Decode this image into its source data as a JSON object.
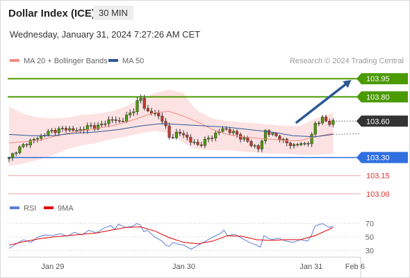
{
  "header": {
    "title": "Dollar Index (ICE)",
    "timeframe": "30 MIN",
    "datetime": "Wednesday, January 31, 2024 7:27:26 AM CET"
  },
  "chart_data": {
    "type": "candlestick",
    "legend": [
      {
        "name": "MA 20 + Bollinger Bands",
        "color": "#f28b82"
      },
      {
        "name": "MA 50",
        "color": "#2b5797"
      }
    ],
    "credit": "Research © 2024 Trading Central",
    "price_axis": {
      "min": 102.965,
      "max": 104.02
    },
    "levels": [
      {
        "value": 103.95,
        "label": "103.95",
        "color": "#4a9a00",
        "kind": "resistance"
      },
      {
        "value": 103.8,
        "label": "103.80",
        "color": "#4a9a00",
        "kind": "resistance"
      },
      {
        "value": 103.6,
        "label": "103.60",
        "color": "#333333",
        "kind": "pivot"
      },
      {
        "value": 103.3,
        "label": "103.30",
        "color": "#2f6fe0",
        "kind": "support"
      },
      {
        "value": 103.15,
        "label": "103.15",
        "color": "#f2a0a0",
        "kind": "support"
      },
      {
        "value": 103.0,
        "label": "103.00",
        "color": "#f2a0a0",
        "kind": "support"
      }
    ],
    "forecast_arrow": {
      "from_x": 79,
      "from_price": 103.59,
      "to_x": 94,
      "to_price": 103.94,
      "color": "#2b5797"
    },
    "x_axis": {
      "min": 0,
      "max": 100,
      "labels": [
        {
          "x": 12,
          "text": "Jan 29"
        },
        {
          "x": 48,
          "text": "Jan 30"
        },
        {
          "x": 83,
          "text": "Jan 31"
        },
        {
          "x": 95,
          "text": "Feb 6"
        }
      ]
    },
    "close_series": [
      [
        0,
        103.29
      ],
      [
        2,
        103.36
      ],
      [
        4,
        103.4
      ],
      [
        6,
        103.44
      ],
      [
        8,
        103.46
      ],
      [
        10,
        103.5
      ],
      [
        12,
        103.52
      ],
      [
        14,
        103.53
      ],
      [
        16,
        103.54
      ],
      [
        18,
        103.52
      ],
      [
        20,
        103.53
      ],
      [
        22,
        103.56
      ],
      [
        24,
        103.55
      ],
      [
        26,
        103.58
      ],
      [
        28,
        103.62
      ],
      [
        30,
        103.59
      ],
      [
        32,
        103.63
      ],
      [
        34,
        103.68
      ],
      [
        35,
        103.75
      ],
      [
        36,
        103.8
      ],
      [
        37,
        103.72
      ],
      [
        38,
        103.68
      ],
      [
        40,
        103.66
      ],
      [
        42,
        103.62
      ],
      [
        43,
        103.55
      ],
      [
        44,
        103.46
      ],
      [
        46,
        103.5
      ],
      [
        48,
        103.49
      ],
      [
        50,
        103.43
      ],
      [
        52,
        103.4
      ],
      [
        54,
        103.44
      ],
      [
        56,
        103.48
      ],
      [
        58,
        103.52
      ],
      [
        59,
        103.55
      ],
      [
        60,
        103.52
      ],
      [
        62,
        103.5
      ],
      [
        64,
        103.46
      ],
      [
        66,
        103.42
      ],
      [
        68,
        103.38
      ],
      [
        69,
        103.36
      ],
      [
        70,
        103.53
      ],
      [
        72,
        103.49
      ],
      [
        74,
        103.47
      ],
      [
        76,
        103.42
      ],
      [
        78,
        103.4
      ],
      [
        80,
        103.41
      ],
      [
        82,
        103.42
      ],
      [
        83,
        103.46
      ],
      [
        84,
        103.58
      ],
      [
        86,
        103.62
      ],
      [
        88,
        103.58
      ],
      [
        89,
        103.6
      ]
    ],
    "ma20": [
      [
        0,
        103.42
      ],
      [
        4,
        103.43
      ],
      [
        8,
        103.44
      ],
      [
        12,
        103.47
      ],
      [
        16,
        103.5
      ],
      [
        20,
        103.52
      ],
      [
        24,
        103.54
      ],
      [
        28,
        103.56
      ],
      [
        32,
        103.59
      ],
      [
        36,
        103.63
      ],
      [
        40,
        103.67
      ],
      [
        44,
        103.68
      ],
      [
        48,
        103.64
      ],
      [
        52,
        103.59
      ],
      [
        56,
        103.53
      ],
      [
        60,
        103.49
      ],
      [
        64,
        103.47
      ],
      [
        68,
        103.46
      ],
      [
        72,
        103.45
      ],
      [
        76,
        103.44
      ],
      [
        80,
        103.44
      ],
      [
        84,
        103.47
      ],
      [
        89,
        103.5
      ]
    ],
    "bollinger_upper": [
      [
        0,
        103.72
      ],
      [
        4,
        103.66
      ],
      [
        8,
        103.63
      ],
      [
        12,
        103.62
      ],
      [
        16,
        103.63
      ],
      [
        20,
        103.65
      ],
      [
        24,
        103.66
      ],
      [
        28,
        103.68
      ],
      [
        32,
        103.72
      ],
      [
        36,
        103.78
      ],
      [
        40,
        103.83
      ],
      [
        44,
        103.86
      ],
      [
        48,
        103.83
      ],
      [
        50,
        103.74
      ],
      [
        52,
        103.68
      ],
      [
        56,
        103.62
      ],
      [
        60,
        103.6
      ],
      [
        64,
        103.59
      ],
      [
        68,
        103.58
      ],
      [
        72,
        103.57
      ],
      [
        76,
        103.56
      ],
      [
        80,
        103.56
      ],
      [
        84,
        103.62
      ],
      [
        89,
        103.67
      ]
    ],
    "bollinger_lower": [
      [
        0,
        103.23
      ],
      [
        4,
        103.25
      ],
      [
        8,
        103.28
      ],
      [
        12,
        103.32
      ],
      [
        16,
        103.37
      ],
      [
        20,
        103.4
      ],
      [
        24,
        103.42
      ],
      [
        28,
        103.45
      ],
      [
        32,
        103.47
      ],
      [
        36,
        103.5
      ],
      [
        40,
        103.52
      ],
      [
        44,
        103.5
      ],
      [
        48,
        103.42
      ],
      [
        50,
        103.38
      ],
      [
        52,
        103.37
      ],
      [
        56,
        103.36
      ],
      [
        60,
        103.36
      ],
      [
        64,
        103.35
      ],
      [
        68,
        103.34
      ],
      [
        72,
        103.33
      ],
      [
        76,
        103.33
      ],
      [
        80,
        103.32
      ],
      [
        84,
        103.32
      ],
      [
        89,
        103.33
      ]
    ],
    "ma50": [
      [
        0,
        103.49
      ],
      [
        6,
        103.48
      ],
      [
        12,
        103.48
      ],
      [
        18,
        103.5
      ],
      [
        24,
        103.51
      ],
      [
        30,
        103.53
      ],
      [
        36,
        103.56
      ],
      [
        42,
        103.58
      ],
      [
        48,
        103.57
      ],
      [
        54,
        103.56
      ],
      [
        60,
        103.55
      ],
      [
        66,
        103.53
      ],
      [
        72,
        103.51
      ],
      [
        78,
        103.48
      ],
      [
        84,
        103.47
      ],
      [
        89,
        103.49
      ]
    ],
    "rsi_panel": {
      "legend": [
        {
          "name": "RSI",
          "color": "#5b7fd8"
        },
        {
          "name": "9MA",
          "color": "#e00000"
        }
      ],
      "min": 15,
      "max": 85,
      "ticks": [
        70,
        50,
        30
      ],
      "rsi": [
        [
          0,
          33
        ],
        [
          2,
          40
        ],
        [
          4,
          46
        ],
        [
          6,
          42
        ],
        [
          8,
          50
        ],
        [
          10,
          53
        ],
        [
          12,
          52
        ],
        [
          14,
          55
        ],
        [
          16,
          51
        ],
        [
          18,
          57
        ],
        [
          20,
          53
        ],
        [
          22,
          60
        ],
        [
          24,
          56
        ],
        [
          26,
          63
        ],
        [
          28,
          67
        ],
        [
          29,
          61
        ],
        [
          30,
          69
        ],
        [
          32,
          64
        ],
        [
          34,
          66
        ],
        [
          35,
          70
        ],
        [
          36,
          68
        ],
        [
          37,
          58
        ],
        [
          38,
          60
        ],
        [
          40,
          50
        ],
        [
          42,
          44
        ],
        [
          43,
          38
        ],
        [
          44,
          36
        ],
        [
          45,
          42
        ],
        [
          46,
          40
        ],
        [
          48,
          38
        ],
        [
          50,
          32
        ],
        [
          52,
          38
        ],
        [
          54,
          44
        ],
        [
          56,
          50
        ],
        [
          58,
          55
        ],
        [
          59,
          60
        ],
        [
          60,
          52
        ],
        [
          62,
          54
        ],
        [
          64,
          48
        ],
        [
          66,
          42
        ],
        [
          68,
          38
        ],
        [
          69,
          35
        ],
        [
          70,
          52
        ],
        [
          72,
          46
        ],
        [
          74,
          48
        ],
        [
          76,
          44
        ],
        [
          78,
          42
        ],
        [
          80,
          46
        ],
        [
          82,
          44
        ],
        [
          83,
          52
        ],
        [
          84,
          66
        ],
        [
          86,
          70
        ],
        [
          88,
          64
        ],
        [
          89,
          66
        ]
      ],
      "ma9": [
        [
          0,
          38
        ],
        [
          4,
          43
        ],
        [
          8,
          47
        ],
        [
          12,
          50
        ],
        [
          16,
          52
        ],
        [
          20,
          54
        ],
        [
          24,
          56
        ],
        [
          28,
          60
        ],
        [
          32,
          64
        ],
        [
          36,
          65
        ],
        [
          40,
          59
        ],
        [
          44,
          49
        ],
        [
          48,
          42
        ],
        [
          52,
          40
        ],
        [
          56,
          44
        ],
        [
          60,
          52
        ],
        [
          64,
          51
        ],
        [
          68,
          46
        ],
        [
          72,
          45
        ],
        [
          76,
          46
        ],
        [
          80,
          46
        ],
        [
          84,
          52
        ],
        [
          89,
          64
        ]
      ]
    }
  }
}
